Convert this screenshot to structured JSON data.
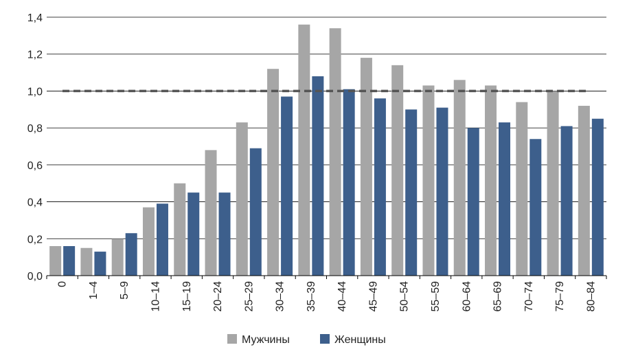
{
  "chart_data": {
    "type": "bar",
    "title": "",
    "xlabel": "",
    "ylabel": "",
    "ylim": [
      0,
      1.4
    ],
    "yticks": [
      "0,0",
      "0,2",
      "0,4",
      "0,6",
      "0,8",
      "1,0",
      "1,2",
      "1,4"
    ],
    "ytick_values": [
      0,
      0.2,
      0.4,
      0.6,
      0.8,
      1.0,
      1.2,
      1.4
    ],
    "grid": true,
    "legend_position": "bottom-center",
    "categories": [
      "0",
      "1–4",
      "5–9",
      "10–14",
      "15–19",
      "20–24",
      "25–29",
      "30–34",
      "35–39",
      "40–44",
      "45–49",
      "50–54",
      "55–59",
      "60–64",
      "65–69",
      "70–74",
      "75–79",
      "80–84"
    ],
    "series": [
      {
        "name": "Мужчины",
        "color": "#a6a6a6",
        "values": [
          0.16,
          0.15,
          0.2,
          0.37,
          0.5,
          0.68,
          0.83,
          1.12,
          1.36,
          1.34,
          1.18,
          1.14,
          1.03,
          1.06,
          1.03,
          0.94,
          1.0,
          0.92
        ]
      },
      {
        "name": "Женщины",
        "color": "#3d5f8c",
        "values": [
          0.16,
          0.13,
          0.23,
          0.39,
          0.45,
          0.45,
          0.69,
          0.97,
          1.08,
          1.01,
          0.96,
          0.9,
          0.91,
          0.8,
          0.83,
          0.74,
          0.81,
          0.85
        ]
      }
    ],
    "reference_line": {
      "value": 1.0,
      "style": "dashed",
      "color": "#555555"
    }
  }
}
